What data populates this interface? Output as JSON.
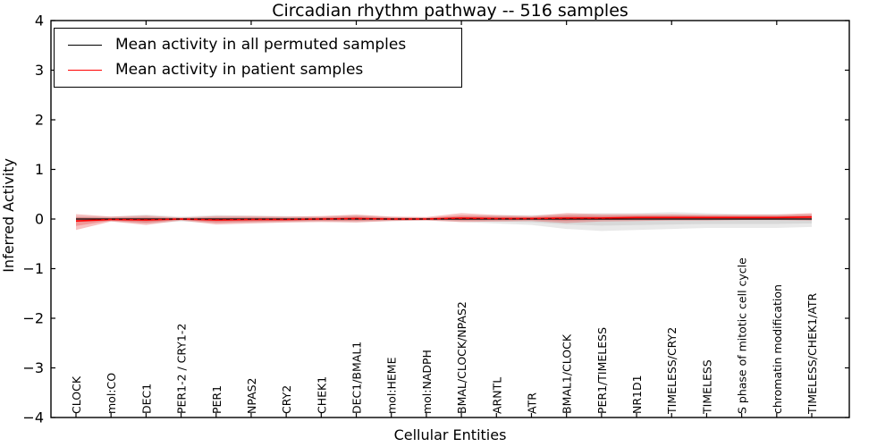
{
  "title": "Circadian rhythm pathway -- 516 samples",
  "axes": {
    "x_label": "Cellular Entities",
    "y_label": "Inferred Activity",
    "y_tick_labels": [
      "4",
      "3",
      "2",
      "1",
      "0",
      "−1",
      "−2",
      "−3",
      "−4"
    ],
    "y_tick_values": [
      4,
      3,
      2,
      1,
      0,
      -1,
      -2,
      -3,
      -4
    ]
  },
  "legend": {
    "entries": [
      {
        "label": "Mean activity in all permuted samples",
        "color": "#000000"
      },
      {
        "label": "Mean activity in patient samples",
        "color": "#ff0000"
      }
    ]
  },
  "colors": {
    "background": "#ffffff",
    "axis": "#000000",
    "permuted_line": "#000000",
    "patient_line": "#ff0000",
    "permuted_band": "#9a9a9a",
    "patient_band": "#e53535"
  },
  "chart_data": {
    "type": "line",
    "title": "Circadian rhythm pathway -- 516 samples",
    "xlabel": "Cellular Entities",
    "ylabel": "Inferred Activity",
    "ylim": [
      -4,
      4
    ],
    "grid": false,
    "legend_position": "upper left",
    "categories": [
      "CLOCK",
      "mol:CO",
      "DEC1",
      "PER1-2 / CRY1-2",
      "PER1",
      "NPAS2",
      "CRY2",
      "CHEK1",
      "DEC1/BMAL1",
      "mol:HEME",
      "mol:NADPH",
      "BMAL/CLOCK/NPAS2",
      "ARNTL",
      "ATR",
      "BMAL1/CLOCK",
      "PER1/TIMELESS",
      "NR1D1",
      "TIMELESS/CRY2",
      "TIMELESS",
      "S phase of mitotic cell cycle",
      "chromatin modification",
      "TIMELESS/CHEK1/ATR"
    ],
    "top_tick_indices": [
      2,
      5,
      8,
      11,
      14,
      17,
      20
    ],
    "series": [
      {
        "name": "Mean activity in all permuted samples",
        "color": "#000000",
        "style": "solid",
        "values": [
          0,
          0,
          0,
          0,
          0,
          0,
          0,
          0,
          0,
          0,
          0,
          0,
          0,
          0,
          0,
          0,
          0,
          0,
          0,
          0,
          0,
          0
        ]
      },
      {
        "name": "Mean activity in patient samples",
        "color": "#ff0000",
        "style": "solid",
        "values": [
          -0.04,
          -0.01,
          -0.02,
          0,
          -0.02,
          -0.01,
          -0.01,
          0,
          0.01,
          0,
          0,
          0.02,
          0.01,
          0.01,
          0.02,
          0.02,
          0.03,
          0.03,
          0.03,
          0.03,
          0.03,
          0.04
        ]
      }
    ],
    "zero_reference_line": {
      "style": "dashed",
      "color": "#000000",
      "value": 0
    },
    "bands": [
      {
        "name": "permuted-sample-range",
        "color": "#9a9a9a",
        "opacity": 0.22,
        "upper": [
          0.06,
          0.05,
          0.09,
          0.05,
          0.08,
          0.07,
          0.06,
          0.05,
          0.08,
          0.04,
          0.03,
          0.06,
          0.08,
          0.08,
          0.1,
          0.12,
          0.12,
          0.14,
          0.12,
          0.1,
          0.1,
          0.1
        ],
        "lower": [
          -0.06,
          -0.05,
          -0.09,
          -0.05,
          -0.08,
          -0.07,
          -0.06,
          -0.05,
          -0.06,
          -0.04,
          -0.03,
          -0.06,
          -0.09,
          -0.12,
          -0.2,
          -0.24,
          -0.22,
          -0.2,
          -0.18,
          -0.18,
          -0.18,
          -0.16
        ]
      },
      {
        "name": "patient-sample-range",
        "color": "#e53535",
        "opacity": 0.3,
        "upper": [
          0.1,
          0.05,
          0.07,
          0.03,
          0.06,
          0.06,
          0.05,
          0.06,
          0.09,
          0.05,
          0.04,
          0.12,
          0.08,
          0.06,
          0.12,
          0.1,
          0.1,
          0.1,
          0.09,
          0.09,
          0.09,
          0.12
        ],
        "lower": [
          -0.22,
          -0.05,
          -0.12,
          -0.03,
          -0.11,
          -0.09,
          -0.07,
          -0.06,
          -0.07,
          -0.04,
          -0.03,
          -0.06,
          -0.05,
          -0.04,
          -0.08,
          -0.05,
          -0.04,
          -0.03,
          -0.03,
          -0.02,
          -0.02,
          -0.03
        ]
      }
    ]
  }
}
